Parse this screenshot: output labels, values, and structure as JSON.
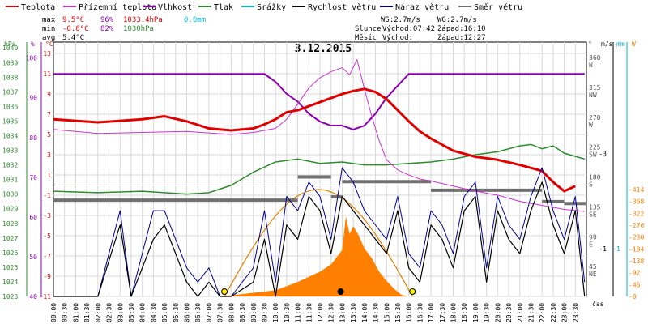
{
  "legend": [
    {
      "label": "Teplota",
      "color": "#e00000"
    },
    {
      "label": "Přízemní teplota",
      "color": "#cc33cc"
    },
    {
      "label": "Vlhkost",
      "color": "#8a00b0"
    },
    {
      "label": "Tlak",
      "color": "#2e8b2e"
    },
    {
      "label": "Srážky",
      "color": "#00b8c8"
    },
    {
      "label": "Rychlost větru",
      "color": "#000000"
    },
    {
      "label": "Náraz větru",
      "color": "#00008b"
    },
    {
      "label": "Směr větru",
      "color": "#707070"
    }
  ],
  "stats": {
    "max": {
      "label": "max",
      "temp": "9.5°C",
      "hum": "96%",
      "press": "1033.4hPa",
      "rain": "0.0mm"
    },
    "min": {
      "label": "min",
      "temp": "-0.6°C",
      "hum": "82%",
      "press": "1030hPa"
    },
    "avg": {
      "label": "avg",
      "temp": "5.4°C"
    }
  },
  "info": {
    "ws": "WS:2.7m/s",
    "wg": "WG:2.7m/s",
    "sun_label": "Slunce",
    "sunrise": "Východ:07:42",
    "sunset": "Západ:16:10",
    "moon_label": "Měsíc",
    "moonrise": "Východ:",
    "moonset": "Západ:12:27"
  },
  "date": "3.12.2015",
  "axis_units": {
    "hpa": "hPa",
    "pct": "%",
    "degc": "°C",
    "deg": "°",
    "ms": "m/s",
    "mm": "mm",
    "w": "W",
    "time": "čas"
  },
  "colors": {
    "temp": "#e00000",
    "ground": "#cc33cc",
    "hum": "#8a00b0",
    "press": "#2e8b2e",
    "rain": "#00b8c8",
    "wind": "#000000",
    "gust": "#00008b",
    "dir": "#707070",
    "solar": "#ff8000",
    "sun_curve": "#e08000",
    "grid": "#d8d8d8"
  },
  "chart_data": {
    "type": "line",
    "x_ticks": [
      "00:00",
      "00:30",
      "01:00",
      "01:30",
      "02:00",
      "02:30",
      "03:00",
      "03:30",
      "04:00",
      "04:30",
      "05:00",
      "05:30",
      "06:00",
      "06:30",
      "07:00",
      "07:30",
      "08:00",
      "08:30",
      "09:00",
      "09:30",
      "10:00",
      "10:30",
      "11:00",
      "11:30",
      "12:00",
      "12:30",
      "13:00",
      "13:30",
      "14:00",
      "14:30",
      "15:00",
      "15:30",
      "16:00",
      "16:30",
      "17:00",
      "17:30",
      "18:00",
      "18:30",
      "19:00",
      "19:30",
      "20:00",
      "20:30",
      "21:00",
      "21:30",
      "22:00",
      "22:30",
      "23:00",
      "23:30"
    ],
    "axes": {
      "pressure_hpa": {
        "ticks": [
          1040,
          1039,
          1038,
          1037,
          1036,
          1035,
          1034,
          1033,
          1032,
          1031,
          1030,
          1029,
          1028,
          1027,
          1026,
          1025,
          1024,
          1023
        ],
        "range": [
          1023,
          1040
        ]
      },
      "humidity_pct": {
        "ticks": [
          100,
          90,
          80,
          70,
          60,
          50,
          40
        ],
        "range": [
          40,
          104
        ]
      },
      "temperature_c": {
        "ticks": [
          13,
          11,
          9,
          7,
          5,
          3,
          1,
          -1,
          -3,
          -5,
          -7,
          -9,
          -11
        ],
        "range": [
          -11,
          14
        ]
      },
      "wind_dir_deg": {
        "ticks": [
          "360",
          "315",
          "270",
          "225",
          "180",
          "135",
          "90",
          "45"
        ],
        "directions": [
          "N",
          "NW",
          "W",
          "SW",
          "S",
          "SE",
          "E",
          "NE"
        ]
      },
      "wind_ms": {
        "ticks": [
          3,
          1
        ]
      },
      "rain_mm": {
        "ticks": [
          1
        ]
      },
      "solar_w": {
        "ticks": [
          414,
          368,
          322,
          276,
          230,
          184,
          138,
          92,
          46,
          0
        ],
        "range": [
          0,
          414
        ]
      }
    },
    "series": [
      {
        "name": "Teplota",
        "axis": "temperature_c",
        "x": [
          "00:00",
          "02:00",
          "04:00",
          "05:00",
          "06:00",
          "07:00",
          "08:00",
          "09:00",
          "09:30",
          "10:00",
          "10:30",
          "11:00",
          "11:30",
          "12:00",
          "12:30",
          "13:00",
          "13:30",
          "14:00",
          "14:30",
          "15:00",
          "15:30",
          "16:00",
          "16:30",
          "17:00",
          "17:30",
          "18:00",
          "19:00",
          "20:00",
          "21:00",
          "22:00",
          "22:30",
          "23:00",
          "23:30"
        ],
        "y": [
          6.5,
          6.2,
          6.5,
          6.8,
          6.3,
          5.6,
          5.4,
          5.6,
          6.0,
          6.5,
          7.2,
          7.4,
          7.8,
          8.2,
          8.6,
          9.0,
          9.3,
          9.5,
          9.2,
          8.5,
          7.4,
          6.3,
          5.3,
          4.6,
          4.0,
          3.4,
          2.8,
          2.5,
          2.0,
          1.4,
          0.3,
          -0.6,
          -0.1
        ]
      },
      {
        "name": "Přízemní teplota",
        "axis": "temperature_c",
        "x": [
          "00:00",
          "02:00",
          "04:00",
          "06:00",
          "08:00",
          "09:00",
          "10:00",
          "10:30",
          "11:00",
          "11:30",
          "12:00",
          "12:30",
          "13:00",
          "13:20",
          "13:40",
          "14:00",
          "14:20",
          "14:40",
          "15:00",
          "15:30",
          "16:00",
          "16:30",
          "17:00",
          "18:00",
          "19:00",
          "20:00",
          "21:00",
          "22:00",
          "23:00",
          "23:55"
        ],
        "y": [
          5.5,
          5.1,
          5.2,
          5.3,
          5.0,
          5.2,
          5.6,
          6.5,
          8.0,
          9.6,
          10.6,
          11.2,
          11.6,
          10.9,
          12.4,
          9.5,
          6.8,
          4.4,
          2.5,
          1.5,
          1.0,
          0.6,
          0.4,
          -0.1,
          -0.6,
          -1.0,
          -1.6,
          -2.0,
          -2.4,
          -2.6
        ]
      },
      {
        "name": "Vlhkost",
        "axis": "humidity_pct",
        "x": [
          "00:00",
          "04:00",
          "08:00",
          "09:30",
          "10:00",
          "10:30",
          "11:00",
          "11:30",
          "12:00",
          "12:30",
          "13:00",
          "13:30",
          "14:00",
          "14:30",
          "15:00",
          "15:30",
          "16:00",
          "20:00",
          "23:55"
        ],
        "y": [
          96,
          96,
          96,
          96,
          94,
          91,
          89,
          86,
          84,
          83,
          83,
          82,
          83,
          86,
          90,
          93,
          96,
          96,
          96
        ]
      },
      {
        "name": "Tlak",
        "axis": "pressure_hpa",
        "x": [
          "00:00",
          "02:00",
          "04:00",
          "06:00",
          "07:00",
          "08:00",
          "09:00",
          "10:00",
          "11:00",
          "12:00",
          "13:00",
          "14:00",
          "15:00",
          "16:00",
          "17:00",
          "18:00",
          "19:00",
          "20:00",
          "21:00",
          "21:30",
          "22:00",
          "22:30",
          "23:00",
          "23:55"
        ],
        "y": [
          1030.2,
          1030.1,
          1030.2,
          1030.0,
          1030.1,
          1030.6,
          1031.5,
          1032.2,
          1032.4,
          1032.1,
          1032.2,
          1032.0,
          1032.0,
          1032.1,
          1032.2,
          1032.4,
          1032.7,
          1032.9,
          1033.3,
          1033.4,
          1033.1,
          1033.3,
          1032.8,
          1032.4
        ]
      }
    ],
    "wind": {
      "x": [
        "00:00",
        "02:00",
        "03:00",
        "03:30",
        "04:00",
        "04:30",
        "05:00",
        "05:30",
        "06:00",
        "06:30",
        "07:00",
        "07:30",
        "08:00",
        "09:00",
        "09:30",
        "10:00",
        "10:30",
        "11:00",
        "11:30",
        "12:00",
        "12:30",
        "13:00",
        "13:30",
        "14:00",
        "14:30",
        "15:00",
        "15:30",
        "16:00",
        "16:30",
        "17:00",
        "17:30",
        "18:00",
        "18:30",
        "19:00",
        "19:30",
        "20:00",
        "20:30",
        "21:00",
        "21:30",
        "22:00",
        "22:30",
        "23:00",
        "23:30",
        "23:55"
      ],
      "gust": [
        0,
        0,
        1.8,
        0,
        0.9,
        1.8,
        1.8,
        1.2,
        0.6,
        0.3,
        0.6,
        0,
        0,
        0.6,
        1.8,
        0.3,
        2.1,
        1.8,
        2.4,
        2.1,
        1.2,
        2.7,
        2.4,
        1.8,
        1.5,
        1.2,
        2.1,
        0.9,
        0.6,
        1.8,
        1.5,
        0.9,
        2.1,
        2.4,
        0.6,
        2.1,
        1.5,
        1.2,
        2.1,
        2.7,
        1.8,
        1.2,
        2.1,
        0.3
      ],
      "speed": [
        0,
        0,
        1.5,
        0,
        0.6,
        1.2,
        1.5,
        0.9,
        0.3,
        0,
        0.3,
        0,
        0,
        0.3,
        1.2,
        0,
        1.5,
        1.2,
        2.1,
        1.8,
        0.9,
        2.1,
        1.8,
        1.5,
        1.2,
        0.9,
        1.8,
        0.6,
        0.3,
        1.5,
        1.2,
        0.6,
        1.8,
        2.1,
        0.3,
        1.8,
        1.2,
        0.9,
        1.8,
        2.4,
        1.5,
        0.9,
        1.8,
        0
      ]
    },
    "wind_direction": {
      "x": [
        "00:00",
        "06:00",
        "10:30",
        "11:00",
        "12:00",
        "12:30",
        "13:00",
        "17:00",
        "22:00",
        "23:00"
      ],
      "deg": [
        145,
        145,
        145,
        180,
        180,
        150,
        173,
        160,
        143,
        140
      ]
    },
    "solar": {
      "x": [
        "07:30",
        "08:00",
        "09:00",
        "10:00",
        "10:30",
        "11:00",
        "11:30",
        "12:00",
        "12:30",
        "13:00",
        "13:10",
        "13:20",
        "13:30",
        "13:45",
        "14:00",
        "14:20",
        "14:40",
        "15:00",
        "15:20",
        "15:40",
        "16:00"
      ],
      "w": [
        0,
        4,
        14,
        24,
        40,
        56,
        76,
        96,
        124,
        180,
        310,
        242,
        272,
        236,
        186,
        148,
        96,
        60,
        30,
        6,
        0
      ]
    },
    "sun_curve": {
      "x": [
        "07:42",
        "12:00",
        "16:10"
      ],
      "peak_w": 414
    },
    "markers": [
      {
        "name": "sunrise",
        "x": "07:42"
      },
      {
        "name": "sunset",
        "x": "16:10"
      },
      {
        "name": "solar-noon",
        "x": "12:56"
      }
    ]
  }
}
